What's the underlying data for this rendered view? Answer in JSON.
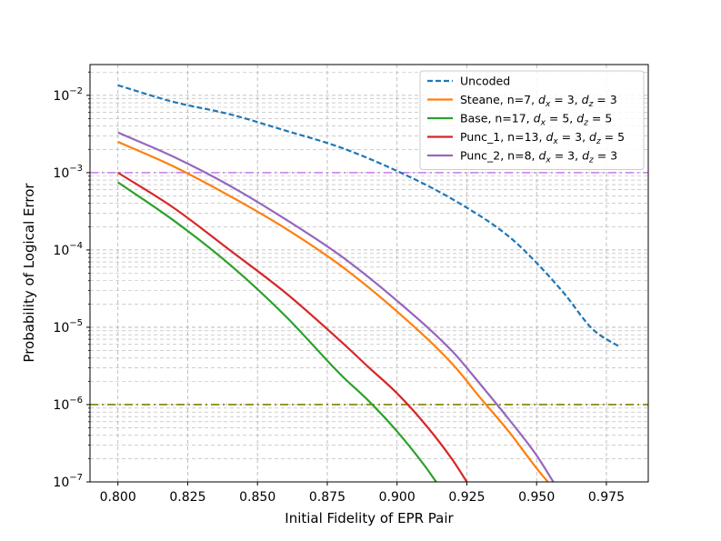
{
  "chart_data": {
    "type": "line",
    "title": "",
    "xlabel": "Initial Fidelity of EPR Pair",
    "ylabel": "Probability of Logical Error",
    "xlim": [
      0.79,
      0.99
    ],
    "ylim": [
      1e-07,
      0.025
    ],
    "yscale": "log",
    "grid": "on (major and minor, dashed)",
    "legend_placement": "top-right",
    "x_ticks": [
      "0.800",
      "0.825",
      "0.850",
      "0.875",
      "0.900",
      "0.925",
      "0.950",
      "0.975"
    ],
    "y_ticks": [
      {
        "base": "10",
        "exp": "−2",
        "value": 0.01
      },
      {
        "base": "10",
        "exp": "−3",
        "value": 0.001
      },
      {
        "base": "10",
        "exp": "−4",
        "value": 0.0001
      },
      {
        "base": "10",
        "exp": "−5",
        "value": 1e-05
      },
      {
        "base": "10",
        "exp": "−6",
        "value": 1e-06
      },
      {
        "base": "10",
        "exp": "−7",
        "value": 1e-07
      }
    ],
    "threshold_lines": [
      {
        "y": 0.001,
        "color": "#c77ae8",
        "style": "dashdot"
      },
      {
        "y": 1e-06,
        "color": "#808000",
        "style": "dashdot"
      }
    ],
    "series": [
      {
        "legend_prefix": "Uncoded",
        "legend_sub": [],
        "color": "#1f77b4",
        "style": "dashed",
        "x": [
          0.8,
          0.82,
          0.84,
          0.86,
          0.88,
          0.9,
          0.92,
          0.94,
          0.95,
          0.96,
          0.97,
          0.98
        ],
        "y": [
          0.0135,
          0.0082,
          0.0057,
          0.0035,
          0.0021,
          0.00105,
          0.00045,
          0.00015,
          6.8e-05,
          2.7e-05,
          9.5e-06,
          5.5e-06
        ]
      },
      {
        "legend_prefix": "Steane, n=7, ",
        "legend_sub": [
          [
            "d",
            "x",
            " = 3, "
          ],
          [
            "d",
            "z",
            " = 3"
          ]
        ],
        "color": "#ff7f0e",
        "style": "solid",
        "x": [
          0.8,
          0.82,
          0.84,
          0.86,
          0.88,
          0.9,
          0.92,
          0.93,
          0.94,
          0.95,
          0.954
        ],
        "y": [
          0.0025,
          0.0012,
          0.0005,
          0.00019,
          6.2e-05,
          1.6e-05,
          3.3e-06,
          1.2e-06,
          4.5e-07,
          1.5e-07,
          1e-07
        ]
      },
      {
        "legend_prefix": "Base, n=17, ",
        "legend_sub": [
          [
            "d",
            "x",
            " = 5, "
          ],
          [
            "d",
            "z",
            " = 5"
          ]
        ],
        "color": "#2ca02c",
        "style": "solid",
        "x": [
          0.8,
          0.82,
          0.84,
          0.86,
          0.88,
          0.89,
          0.9,
          0.91,
          0.914
        ],
        "y": [
          0.00075,
          0.00024,
          6.5e-05,
          1.4e-05,
          2.4e-06,
          1.1e-06,
          4.5e-07,
          1.6e-07,
          1e-07
        ]
      },
      {
        "legend_prefix": "Punc_1, n=13, ",
        "legend_sub": [
          [
            "d",
            "x",
            " = 3, "
          ],
          [
            "d",
            "z",
            " = 5"
          ]
        ],
        "color": "#d62728",
        "style": "solid",
        "x": [
          0.8,
          0.82,
          0.84,
          0.86,
          0.88,
          0.89,
          0.9,
          0.91,
          0.92,
          0.925
        ],
        "y": [
          0.001,
          0.00035,
          0.0001,
          2.8e-05,
          6.5e-06,
          3e-06,
          1.4e-06,
          5.6e-07,
          1.9e-07,
          1e-07
        ]
      },
      {
        "legend_prefix": "Punc_2, n=8, ",
        "legend_sub": [
          [
            "d",
            "x",
            " = 3, "
          ],
          [
            "d",
            "z",
            " = 3"
          ]
        ],
        "color": "#9467bd",
        "style": "solid",
        "x": [
          0.8,
          0.82,
          0.84,
          0.86,
          0.88,
          0.9,
          0.92,
          0.93,
          0.94,
          0.95,
          0.956
        ],
        "y": [
          0.0033,
          0.0016,
          0.00068,
          0.00025,
          8.3e-05,
          2.2e-05,
          4.8e-06,
          1.8e-06,
          6.5e-07,
          2.2e-07,
          1e-07
        ]
      }
    ]
  }
}
